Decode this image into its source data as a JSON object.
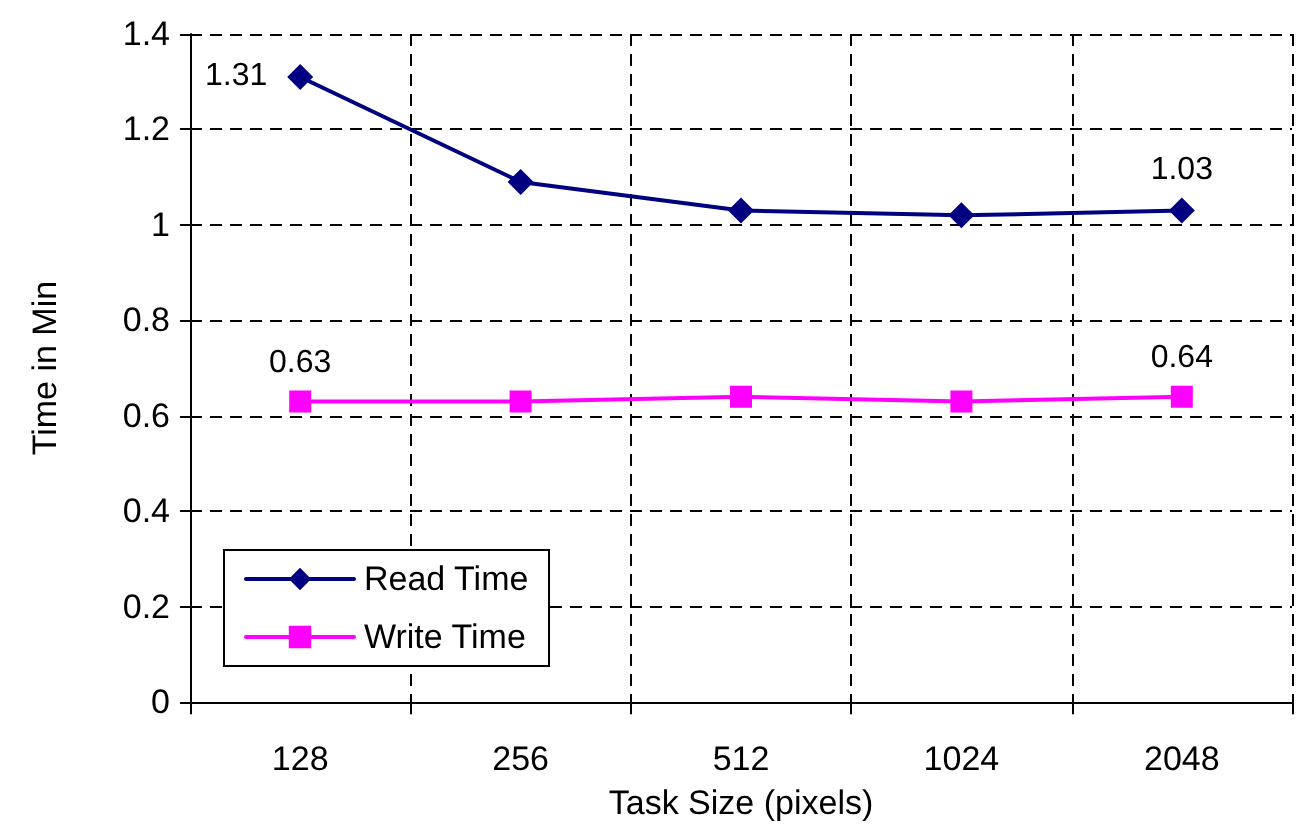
{
  "chart_data": {
    "type": "line",
    "xlabel": "Task Size (pixels)",
    "ylabel": "Time in Min",
    "categories": [
      "128",
      "256",
      "512",
      "1024",
      "2048"
    ],
    "series": [
      {
        "name": "Read Time",
        "color": "#000080",
        "marker": "diamond",
        "values": [
          1.31,
          1.09,
          1.03,
          1.02,
          1.03
        ],
        "value_labels": [
          "1.31",
          null,
          null,
          null,
          "1.03"
        ]
      },
      {
        "name": "Write Time",
        "color": "#ff00ff",
        "marker": "square",
        "values": [
          0.63,
          0.63,
          0.64,
          0.63,
          0.64
        ],
        "value_labels": [
          "0.63",
          null,
          null,
          null,
          "0.64"
        ]
      }
    ],
    "ylim": [
      0,
      1.4
    ],
    "yticks": [
      0,
      0.2,
      0.4,
      0.6,
      0.8,
      1,
      1.2,
      1.4
    ],
    "grid": true,
    "legend": "bottom left",
    "line_style": "solid"
  }
}
